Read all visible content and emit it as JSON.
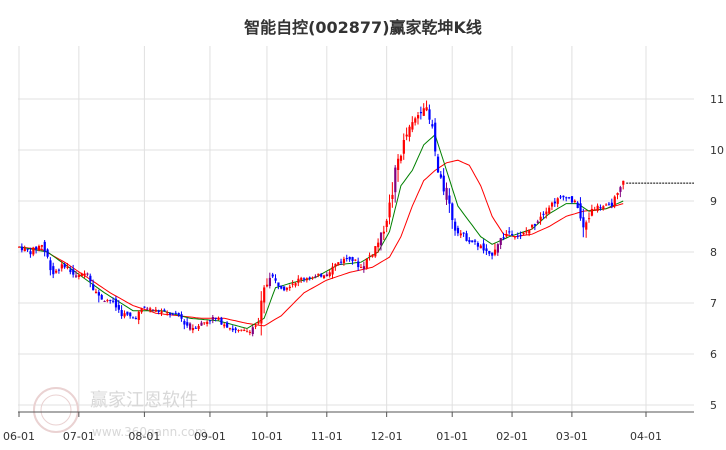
{
  "title": "智能自控(002877)赢家乾坤K线",
  "watermark": {
    "brand": "赢家江恩软件",
    "url": "www.360gann.com",
    "seal": "赢家财富"
  },
  "colors": {
    "up": "#ff0000",
    "down": "#0000ff",
    "neutral": "#800080",
    "ma_short": "#008000",
    "ma_long": "#ff0000",
    "grid": "#e0e0e0",
    "last_price_line": "#000000"
  },
  "chart_data": {
    "type": "candlestick",
    "title": "智能自控(002877)赢家乾坤K线",
    "y_ticks": [
      5,
      6,
      7,
      8,
      9,
      10,
      11
    ],
    "ylim": [
      5,
      11.75
    ],
    "x_ticks": [
      "06-01",
      "07-01",
      "08-01",
      "09-01",
      "10-01",
      "11-01",
      "12-01",
      "01-01",
      "02-01",
      "03-01",
      "04-01"
    ],
    "x_tick_index": [
      0,
      21,
      44,
      67,
      87,
      108,
      129,
      152,
      173,
      194,
      220
    ],
    "grid": true,
    "anchors": [
      [
        0,
        8.1
      ],
      [
        4,
        8.0
      ],
      [
        8,
        8.15
      ],
      [
        12,
        7.6
      ],
      [
        16,
        7.75
      ],
      [
        20,
        7.5
      ],
      [
        24,
        7.6
      ],
      [
        28,
        7.1
      ],
      [
        32,
        7.05
      ],
      [
        36,
        6.8
      ],
      [
        40,
        6.7
      ],
      [
        44,
        6.9
      ],
      [
        48,
        6.85
      ],
      [
        52,
        6.8
      ],
      [
        56,
        6.75
      ],
      [
        60,
        6.5
      ],
      [
        64,
        6.6
      ],
      [
        68,
        6.7
      ],
      [
        72,
        6.6
      ],
      [
        76,
        6.45
      ],
      [
        80,
        6.45
      ],
      [
        84,
        6.6
      ],
      [
        86,
        7.2
      ],
      [
        88,
        7.6
      ],
      [
        90,
        7.4
      ],
      [
        93,
        7.3
      ],
      [
        96,
        7.4
      ],
      [
        100,
        7.5
      ],
      [
        104,
        7.5
      ],
      [
        108,
        7.6
      ],
      [
        112,
        7.8
      ],
      [
        116,
        7.9
      ],
      [
        120,
        7.7
      ],
      [
        124,
        8.0
      ],
      [
        127,
        8.3
      ],
      [
        130,
        8.9
      ],
      [
        133,
        9.8
      ],
      [
        136,
        10.3
      ],
      [
        139,
        10.6
      ],
      [
        142,
        10.9
      ],
      [
        145,
        10.4
      ],
      [
        147,
        9.5
      ],
      [
        150,
        9.1
      ],
      [
        153,
        8.5
      ],
      [
        156,
        8.3
      ],
      [
        159,
        8.2
      ],
      [
        162,
        8.1
      ],
      [
        165,
        7.9
      ],
      [
        168,
        8.2
      ],
      [
        172,
        8.4
      ],
      [
        176,
        8.3
      ],
      [
        180,
        8.5
      ],
      [
        184,
        8.8
      ],
      [
        188,
        9.0
      ],
      [
        192,
        9.1
      ],
      [
        196,
        8.9
      ],
      [
        198,
        8.4
      ],
      [
        201,
        8.85
      ],
      [
        204,
        8.9
      ],
      [
        207,
        8.9
      ],
      [
        210,
        9.1
      ],
      [
        212,
        9.35
      ]
    ],
    "last_price": 9.35,
    "ma_short_anchors": [
      [
        0,
        8.1
      ],
      [
        10,
        8.0
      ],
      [
        20,
        7.6
      ],
      [
        30,
        7.2
      ],
      [
        40,
        6.85
      ],
      [
        50,
        6.85
      ],
      [
        60,
        6.7
      ],
      [
        70,
        6.65
      ],
      [
        80,
        6.5
      ],
      [
        86,
        6.7
      ],
      [
        90,
        7.3
      ],
      [
        96,
        7.4
      ],
      [
        104,
        7.5
      ],
      [
        112,
        7.75
      ],
      [
        120,
        7.8
      ],
      [
        126,
        8.0
      ],
      [
        130,
        8.4
      ],
      [
        134,
        9.3
      ],
      [
        138,
        9.6
      ],
      [
        142,
        10.1
      ],
      [
        146,
        10.3
      ],
      [
        150,
        9.6
      ],
      [
        154,
        8.9
      ],
      [
        158,
        8.6
      ],
      [
        162,
        8.3
      ],
      [
        166,
        8.15
      ],
      [
        172,
        8.3
      ],
      [
        180,
        8.45
      ],
      [
        186,
        8.75
      ],
      [
        192,
        8.95
      ],
      [
        196,
        8.95
      ],
      [
        200,
        8.8
      ],
      [
        206,
        8.85
      ],
      [
        212,
        9.0
      ]
    ],
    "ma_long_anchors": [
      [
        0,
        8.1
      ],
      [
        8,
        8.05
      ],
      [
        16,
        7.8
      ],
      [
        24,
        7.5
      ],
      [
        32,
        7.2
      ],
      [
        40,
        6.95
      ],
      [
        48,
        6.8
      ],
      [
        56,
        6.75
      ],
      [
        64,
        6.7
      ],
      [
        72,
        6.7
      ],
      [
        80,
        6.6
      ],
      [
        86,
        6.55
      ],
      [
        92,
        6.75
      ],
      [
        100,
        7.2
      ],
      [
        108,
        7.45
      ],
      [
        116,
        7.6
      ],
      [
        124,
        7.7
      ],
      [
        130,
        7.9
      ],
      [
        134,
        8.3
      ],
      [
        138,
        8.9
      ],
      [
        142,
        9.4
      ],
      [
        146,
        9.6
      ],
      [
        150,
        9.75
      ],
      [
        154,
        9.8
      ],
      [
        158,
        9.7
      ],
      [
        162,
        9.3
      ],
      [
        166,
        8.7
      ],
      [
        170,
        8.35
      ],
      [
        174,
        8.3
      ],
      [
        180,
        8.35
      ],
      [
        186,
        8.5
      ],
      [
        192,
        8.7
      ],
      [
        198,
        8.8
      ],
      [
        206,
        8.85
      ],
      [
        212,
        8.95
      ]
    ]
  }
}
